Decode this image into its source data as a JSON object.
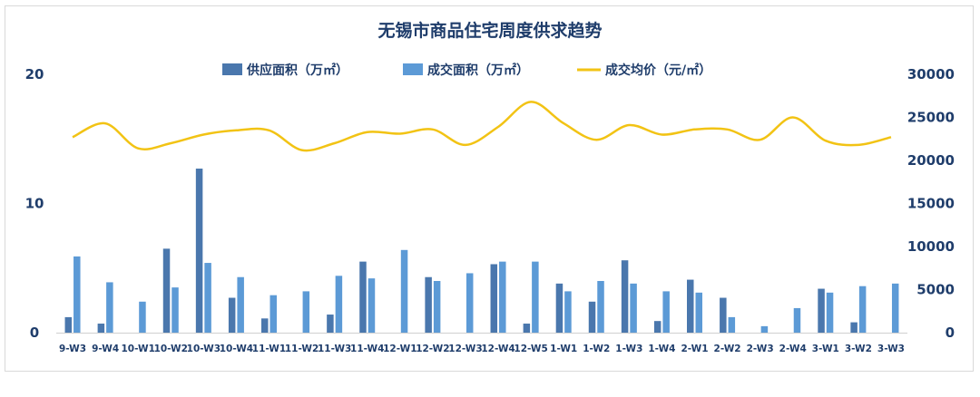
{
  "chart_data": {
    "type": "bar",
    "title": "无锡市商品住宅周度供求趋势",
    "categories": [
      "9-W3",
      "9-W4",
      "10-W1",
      "10-W2",
      "10-W3",
      "10-W4",
      "11-W1",
      "11-W2",
      "11-W3",
      "11-W4",
      "12-W1",
      "12-W2",
      "12-W3",
      "12-W4",
      "12-W5",
      "1-W1",
      "1-W2",
      "1-W3",
      "1-W4",
      "2-W1",
      "2-W2",
      "2-W3",
      "2-W4",
      "3-W1",
      "3-W2",
      "3-W3"
    ],
    "series": [
      {
        "name": "供应面积（万㎡）",
        "type": "bar",
        "axis": "left",
        "color": "#4a77ad",
        "values": [
          1.2,
          0.7,
          0,
          6.5,
          12.7,
          2.7,
          1.1,
          0,
          1.4,
          5.5,
          0,
          4.3,
          0,
          5.3,
          0.7,
          3.8,
          2.4,
          5.6,
          0.9,
          4.1,
          2.7,
          0,
          0,
          3.4,
          0.8,
          0
        ]
      },
      {
        "name": "成交面积（万㎡）",
        "type": "bar",
        "axis": "left",
        "color": "#5c9ad6",
        "values": [
          5.9,
          3.9,
          2.4,
          3.5,
          5.4,
          4.3,
          2.9,
          3.2,
          4.4,
          4.2,
          6.4,
          4.0,
          4.6,
          5.5,
          5.5,
          3.2,
          4.0,
          3.8,
          3.2,
          3.1,
          1.2,
          0.5,
          1.9,
          3.1,
          3.6,
          3.8
        ]
      },
      {
        "name": "成交均价（元/㎡）",
        "type": "line",
        "axis": "right",
        "color": "#f2c314",
        "values": [
          22700,
          24300,
          21400,
          22000,
          23000,
          23500,
          23500,
          21200,
          22000,
          23300,
          23100,
          23600,
          21800,
          23900,
          26800,
          24300,
          22400,
          24100,
          23000,
          23600,
          23600,
          22400,
          25000,
          22300,
          21800,
          22700
        ]
      }
    ],
    "ylim_left": [
      0,
      20
    ],
    "yticks_left": [
      "0",
      "10",
      "20"
    ],
    "ylim_right": [
      0,
      30000
    ],
    "yticks_right": [
      "0",
      "5000",
      "10000",
      "15000",
      "20000",
      "25000",
      "30000"
    ],
    "legend_position": "top-center",
    "grid": false
  }
}
